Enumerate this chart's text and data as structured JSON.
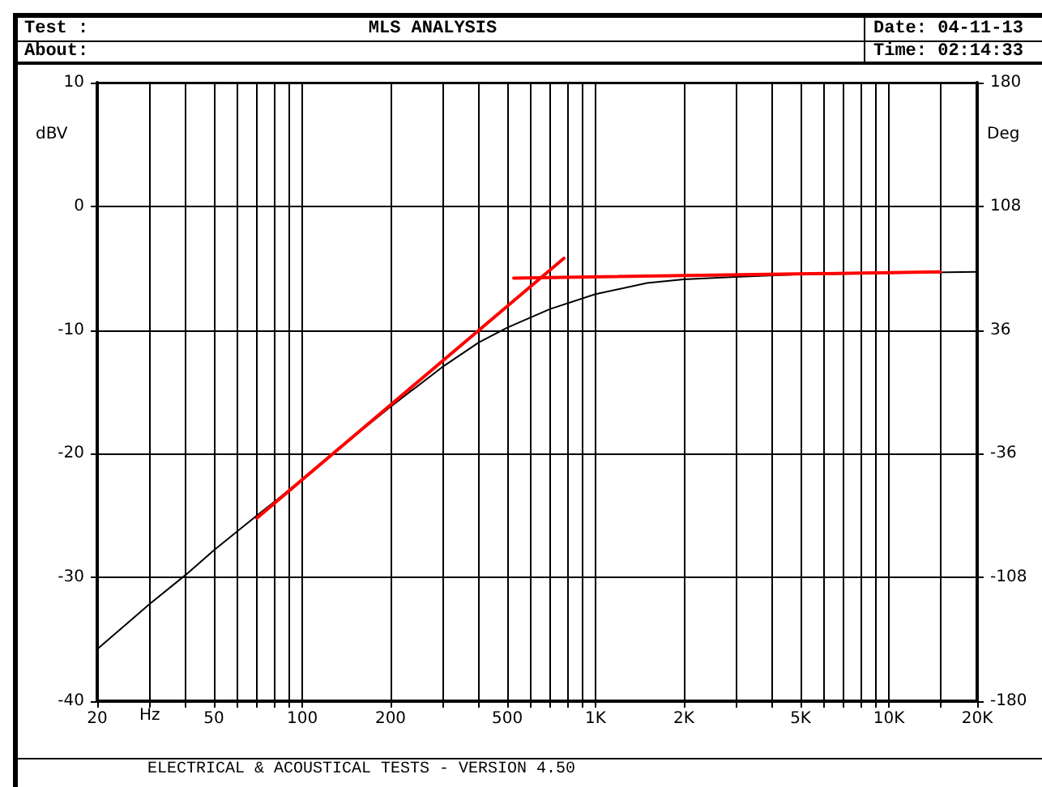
{
  "chart_data": {
    "type": "line",
    "title": "MLS ANALYSIS",
    "xlabel": "Hz",
    "ylabel": "dBV",
    "y2label": "Deg",
    "annotations": [
      "Test :",
      "About:",
      "Date: 04-11-13",
      "Time: 02:14:33",
      "ELECTRICAL & ACOUSTICAL TESTS - VERSION 4.50"
    ],
    "log": "x",
    "grid": true,
    "marker": "none",
    "line_style": "solid",
    "xlim": [
      20,
      20000
    ],
    "ylim": [
      -40,
      10
    ],
    "y2lim": [
      -180,
      180
    ],
    "xticks": [
      20,
      {
        "value": 30,
        "label": null
      },
      {
        "value": 40,
        "label": null
      },
      50,
      {
        "value": 60,
        "label": null
      },
      {
        "value": 70,
        "label": null
      },
      {
        "value": 80,
        "label": null
      },
      {
        "value": 90,
        "label": null
      },
      100,
      200,
      {
        "value": 300,
        "label": null
      },
      {
        "value": 400,
        "label": null
      },
      500,
      {
        "value": 600,
        "label": null
      },
      {
        "value": 700,
        "label": null
      },
      {
        "value": 800,
        "label": null
      },
      {
        "value": 900,
        "label": null
      },
      {
        "value": 1000,
        "label": "1K"
      },
      {
        "value": 2000,
        "label": "2K"
      },
      {
        "value": 3000,
        "label": null
      },
      {
        "value": 4000,
        "label": null
      },
      {
        "value": 5000,
        "label": "5K"
      },
      {
        "value": 6000,
        "label": null
      },
      {
        "value": 7000,
        "label": null
      },
      {
        "value": 8000,
        "label": null
      },
      {
        "value": 9000,
        "label": null
      },
      {
        "value": 10000,
        "label": "10K"
      },
      {
        "value": 15000,
        "label": null
      },
      {
        "value": 20000,
        "label": "20K"
      }
    ],
    "yticks": [
      -40,
      -30,
      -20,
      -10,
      0,
      10
    ],
    "y2ticks": [
      -180,
      -108,
      -36,
      36,
      108,
      180
    ],
    "series": [
      {
        "color": "#000000",
        "x": [
          20,
          30,
          40,
          50,
          70,
          100,
          150,
          200,
          300,
          400,
          500,
          700,
          1000,
          1500,
          2000,
          3000,
          5000,
          10000,
          20000
        ],
        "values": [
          -35.8,
          -32.2,
          -29.8,
          -27.8,
          -25.0,
          -22.1,
          -18.6,
          -16.2,
          -13.0,
          -11.0,
          -9.8,
          -8.3,
          -7.1,
          -6.2,
          -5.9,
          -5.7,
          -5.5,
          -5.4,
          -5.3
        ]
      },
      {
        "color": "#ff0000",
        "x": [
          70,
          780
        ],
        "values": [
          -25.2,
          -4.2
        ]
      },
      {
        "color": "#ff0000",
        "x": [
          526,
          15000
        ],
        "values": [
          -5.8,
          -5.3
        ]
      }
    ]
  }
}
